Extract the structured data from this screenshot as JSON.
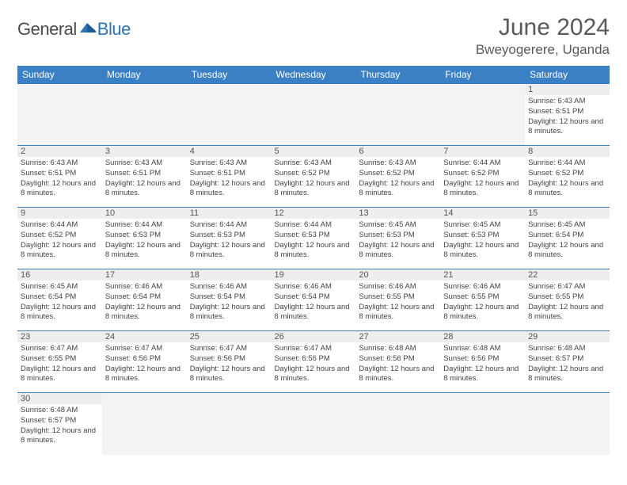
{
  "logo": {
    "word1": "General",
    "word2": "Blue"
  },
  "title": "June 2024",
  "location": "Bweyogerere, Uganda",
  "colors": {
    "header_bg": "#3b7fc4",
    "header_text": "#ffffff",
    "rule": "#3b7fc4",
    "daynum_bg": "#eeeeee",
    "empty_bg": "#f3f3f3",
    "logo_blue": "#2d72b8",
    "logo_gray": "#4a4a4a",
    "text": "#444444"
  },
  "daynames": [
    "Sunday",
    "Monday",
    "Tuesday",
    "Wednesday",
    "Thursday",
    "Friday",
    "Saturday"
  ],
  "weeks": [
    [
      null,
      null,
      null,
      null,
      null,
      null,
      {
        "n": "1",
        "sr": "6:43 AM",
        "ss": "6:51 PM",
        "dl": "12 hours and 8 minutes."
      }
    ],
    [
      {
        "n": "2",
        "sr": "6:43 AM",
        "ss": "6:51 PM",
        "dl": "12 hours and 8 minutes."
      },
      {
        "n": "3",
        "sr": "6:43 AM",
        "ss": "6:51 PM",
        "dl": "12 hours and 8 minutes."
      },
      {
        "n": "4",
        "sr": "6:43 AM",
        "ss": "6:51 PM",
        "dl": "12 hours and 8 minutes."
      },
      {
        "n": "5",
        "sr": "6:43 AM",
        "ss": "6:52 PM",
        "dl": "12 hours and 8 minutes."
      },
      {
        "n": "6",
        "sr": "6:43 AM",
        "ss": "6:52 PM",
        "dl": "12 hours and 8 minutes."
      },
      {
        "n": "7",
        "sr": "6:44 AM",
        "ss": "6:52 PM",
        "dl": "12 hours and 8 minutes."
      },
      {
        "n": "8",
        "sr": "6:44 AM",
        "ss": "6:52 PM",
        "dl": "12 hours and 8 minutes."
      }
    ],
    [
      {
        "n": "9",
        "sr": "6:44 AM",
        "ss": "6:52 PM",
        "dl": "12 hours and 8 minutes."
      },
      {
        "n": "10",
        "sr": "6:44 AM",
        "ss": "6:53 PM",
        "dl": "12 hours and 8 minutes."
      },
      {
        "n": "11",
        "sr": "6:44 AM",
        "ss": "6:53 PM",
        "dl": "12 hours and 8 minutes."
      },
      {
        "n": "12",
        "sr": "6:44 AM",
        "ss": "6:53 PM",
        "dl": "12 hours and 8 minutes."
      },
      {
        "n": "13",
        "sr": "6:45 AM",
        "ss": "6:53 PM",
        "dl": "12 hours and 8 minutes."
      },
      {
        "n": "14",
        "sr": "6:45 AM",
        "ss": "6:53 PM",
        "dl": "12 hours and 8 minutes."
      },
      {
        "n": "15",
        "sr": "6:45 AM",
        "ss": "6:54 PM",
        "dl": "12 hours and 8 minutes."
      }
    ],
    [
      {
        "n": "16",
        "sr": "6:45 AM",
        "ss": "6:54 PM",
        "dl": "12 hours and 8 minutes."
      },
      {
        "n": "17",
        "sr": "6:46 AM",
        "ss": "6:54 PM",
        "dl": "12 hours and 8 minutes."
      },
      {
        "n": "18",
        "sr": "6:46 AM",
        "ss": "6:54 PM",
        "dl": "12 hours and 8 minutes."
      },
      {
        "n": "19",
        "sr": "6:46 AM",
        "ss": "6:54 PM",
        "dl": "12 hours and 8 minutes."
      },
      {
        "n": "20",
        "sr": "6:46 AM",
        "ss": "6:55 PM",
        "dl": "12 hours and 8 minutes."
      },
      {
        "n": "21",
        "sr": "6:46 AM",
        "ss": "6:55 PM",
        "dl": "12 hours and 8 minutes."
      },
      {
        "n": "22",
        "sr": "6:47 AM",
        "ss": "6:55 PM",
        "dl": "12 hours and 8 minutes."
      }
    ],
    [
      {
        "n": "23",
        "sr": "6:47 AM",
        "ss": "6:55 PM",
        "dl": "12 hours and 8 minutes."
      },
      {
        "n": "24",
        "sr": "6:47 AM",
        "ss": "6:56 PM",
        "dl": "12 hours and 8 minutes."
      },
      {
        "n": "25",
        "sr": "6:47 AM",
        "ss": "6:56 PM",
        "dl": "12 hours and 8 minutes."
      },
      {
        "n": "26",
        "sr": "6:47 AM",
        "ss": "6:56 PM",
        "dl": "12 hours and 8 minutes."
      },
      {
        "n": "27",
        "sr": "6:48 AM",
        "ss": "6:56 PM",
        "dl": "12 hours and 8 minutes."
      },
      {
        "n": "28",
        "sr": "6:48 AM",
        "ss": "6:56 PM",
        "dl": "12 hours and 8 minutes."
      },
      {
        "n": "29",
        "sr": "6:48 AM",
        "ss": "6:57 PM",
        "dl": "12 hours and 8 minutes."
      }
    ],
    [
      {
        "n": "30",
        "sr": "6:48 AM",
        "ss": "6:57 PM",
        "dl": "12 hours and 8 minutes."
      },
      null,
      null,
      null,
      null,
      null,
      null
    ]
  ],
  "labels": {
    "sunrise": "Sunrise:",
    "sunset": "Sunset:",
    "daylight": "Daylight:"
  }
}
